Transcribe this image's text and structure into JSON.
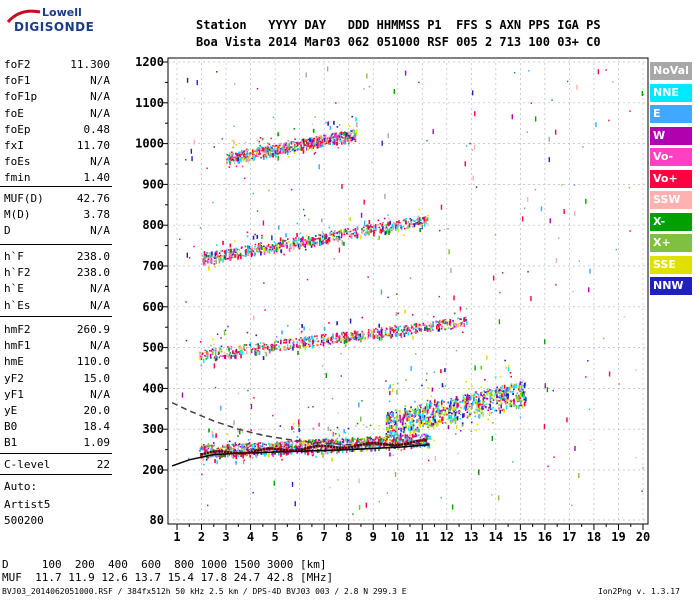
{
  "logo": {
    "top": "Lowell",
    "bottom": "DIGISONDE"
  },
  "header": {
    "line1": "Station   YYYY DAY   DDD HHMMSS P1  FFS S AXN PPS IGA PS",
    "line2": "Boa Vista 2014 Mar03 062 051000 RSF 005 2 713 100 03+ C0"
  },
  "params_group1": [
    {
      "name": "foF2",
      "value": "11.300"
    },
    {
      "name": "foF1",
      "value": "N/A"
    },
    {
      "name": "foF1p",
      "value": "N/A"
    },
    {
      "name": "foE",
      "value": "N/A"
    },
    {
      "name": "foEp",
      "value": "0.48"
    },
    {
      "name": "fxI",
      "value": "11.70"
    },
    {
      "name": "foEs",
      "value": "N/A"
    },
    {
      "name": "fmin",
      "value": "1.40"
    }
  ],
  "params_group2": [
    {
      "name": "MUF(D)",
      "value": "42.76"
    },
    {
      "name": "M(D)",
      "value": "3.78"
    },
    {
      "name": "D",
      "value": "N/A"
    }
  ],
  "params_group3": [
    {
      "name": "h`F",
      "value": "238.0"
    },
    {
      "name": "h`F2",
      "value": "238.0"
    },
    {
      "name": "h`E",
      "value": "N/A"
    },
    {
      "name": "h`Es",
      "value": "N/A"
    }
  ],
  "params_group4": [
    {
      "name": "hmF2",
      "value": "260.9"
    },
    {
      "name": "hmF1",
      "value": "N/A"
    },
    {
      "name": "hmE",
      "value": "110.0"
    },
    {
      "name": "yF2",
      "value": "15.0"
    },
    {
      "name": "yF1",
      "value": "N/A"
    },
    {
      "name": "yE",
      "value": "20.0"
    },
    {
      "name": "B0",
      "value": "18.4"
    },
    {
      "name": "B1",
      "value": "1.09"
    }
  ],
  "params_group5": [
    {
      "name": "C-level",
      "value": "22"
    }
  ],
  "auto_info": {
    "line1": "Auto:",
    "line2": "Artist5",
    "line3": "500200"
  },
  "footer": {
    "d_line": "D     100  200  400  600  800 1000 1500 3000 [km]",
    "muf_line": "MUF  11.7 11.9 12.6 13.7 15.4 17.8 24.7 42.8 [MHz]",
    "file_line": "BVJ03_2014062051000.RSF / 384fx512h 50 kHz 2.5 km / DPS-4D BVJ03 003 / 2.8 N 299.3 E",
    "version": "Ion2Png v. 1.3.17"
  },
  "colors": {
    "NoVal": "#a8a8a8",
    "NNE": "#00e8ff",
    "E": "#40a8ff",
    "W": "#b000b0",
    "Vo-": "#ff40c0",
    "Vo+": "#ff0040",
    "SSW": "#ffb0b0",
    "X-": "#00a000",
    "X+": "#80c040",
    "SSE": "#e0e000",
    "NNW": "#2020c0",
    "trace_solid": "#000000",
    "trace_dashed": "#404040"
  },
  "chart_data": {
    "type": "scatter",
    "title": "",
    "xlabel": "",
    "ylabel": "",
    "xlim": [
      0.8,
      20.2
    ],
    "ylim": [
      80,
      1200
    ],
    "x_ticks": [
      1,
      2,
      3,
      4,
      5,
      6,
      7,
      8,
      9,
      10,
      11,
      12,
      13,
      14,
      15,
      16,
      17,
      18,
      19,
      20
    ],
    "y_ticks": [
      80,
      200,
      300,
      400,
      500,
      600,
      700,
      800,
      900,
      1000,
      1100,
      1200
    ],
    "grid": true,
    "legend": [
      "NoVal",
      "NNE",
      "E",
      "W",
      "Vo-",
      "Vo+",
      "SSW",
      "X-",
      "X+",
      "SSE",
      "NNW"
    ],
    "legend_placement": "right",
    "echo_traces": [
      {
        "name": "F2 1-hop",
        "x_start": 1.9,
        "x_end": 11.3,
        "h_start": 240,
        "h_end": 270,
        "spread": 30
      },
      {
        "name": "F2 2-hop",
        "x_start": 1.9,
        "x_end": 12.8,
        "h_start": 478,
        "h_end": 560,
        "spread": 25
      },
      {
        "name": "F2 3-hop",
        "x_start": 2.0,
        "x_end": 11.2,
        "h_start": 715,
        "h_end": 810,
        "spread": 25
      },
      {
        "name": "F2 4-hop",
        "x_start": 3.0,
        "x_end": 8.3,
        "h_start": 960,
        "h_end": 1020,
        "spread": 25
      },
      {
        "name": "spread cluster",
        "x_start": 9.5,
        "x_end": 15.2,
        "h_start": 300,
        "h_end": 380,
        "spread": 60
      }
    ],
    "profile_solid": [
      [
        0.8,
        210
      ],
      [
        1.5,
        225
      ],
      [
        2.5,
        238
      ],
      [
        4,
        242
      ],
      [
        6,
        246
      ],
      [
        8,
        250
      ],
      [
        10,
        256
      ],
      [
        11.3,
        262
      ]
    ],
    "profile_dashed": [
      [
        0.8,
        365
      ],
      [
        1.5,
        345
      ],
      [
        2.5,
        320
      ],
      [
        3.5,
        300
      ],
      [
        4.5,
        285
      ],
      [
        5.5,
        275
      ],
      [
        6.5,
        268
      ],
      [
        8,
        262
      ],
      [
        10,
        262
      ],
      [
        11.3,
        265
      ]
    ]
  }
}
